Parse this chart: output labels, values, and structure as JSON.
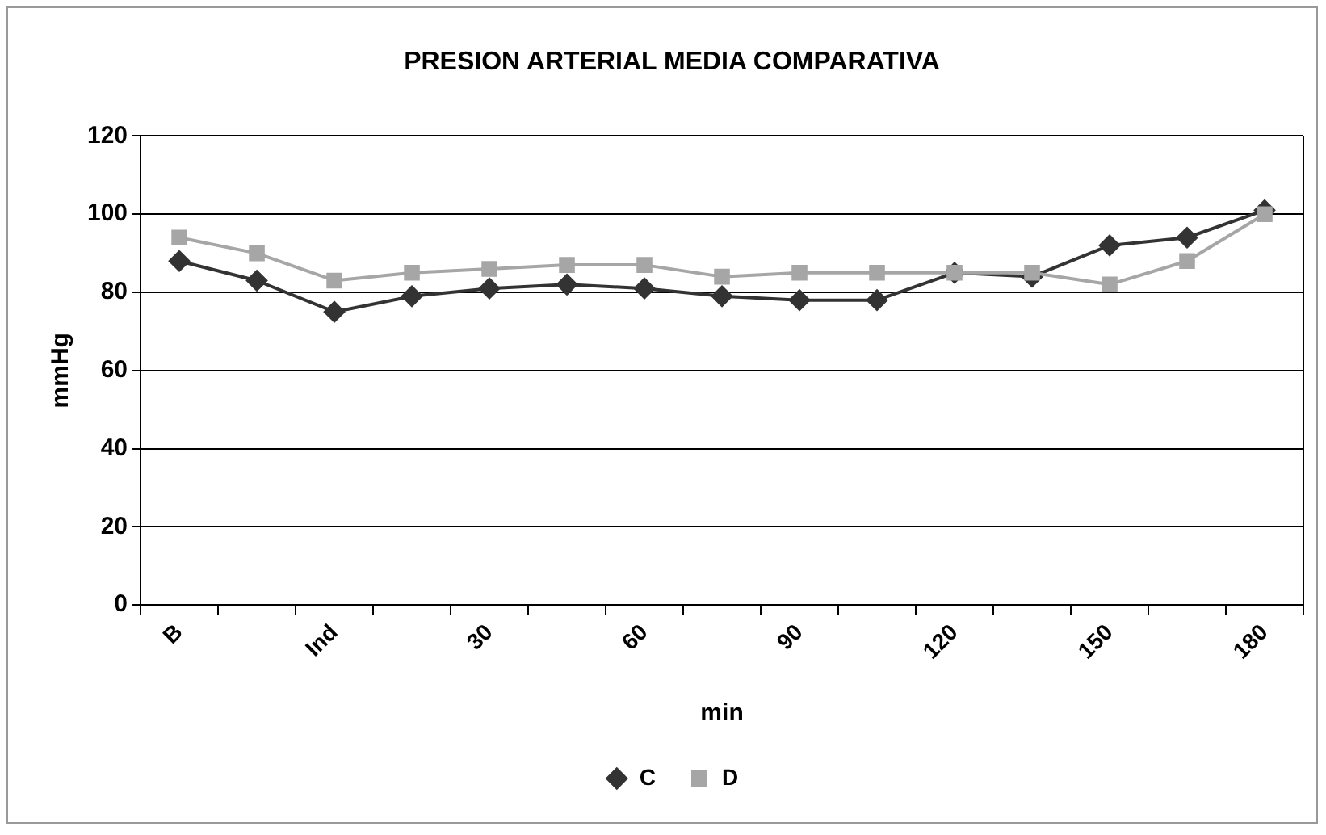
{
  "chart_data": {
    "type": "line",
    "title": "PRESION ARTERIAL MEDIA COMPARATIVA",
    "xlabel": "min",
    "ylabel": "mmHg",
    "categories": [
      "B",
      null,
      "Ind",
      null,
      "30",
      null,
      "60",
      null,
      "90",
      null,
      "120",
      null,
      "150",
      null,
      "180"
    ],
    "series": [
      {
        "name": "C",
        "color": "#333333",
        "marker": "diamond",
        "values": [
          88,
          83,
          75,
          79,
          81,
          82,
          81,
          79,
          78,
          78,
          85,
          84,
          92,
          94,
          101
        ]
      },
      {
        "name": "D",
        "color": "#a6a6a6",
        "marker": "square",
        "values": [
          94,
          90,
          83,
          85,
          86,
          87,
          87,
          84,
          85,
          85,
          85,
          85,
          82,
          88,
          100
        ]
      }
    ],
    "ylim": [
      0,
      120
    ],
    "yticks": [
      0,
      20,
      40,
      60,
      80,
      100,
      120
    ],
    "grid": "y",
    "legend": "bottom",
    "line_style": "solid"
  }
}
